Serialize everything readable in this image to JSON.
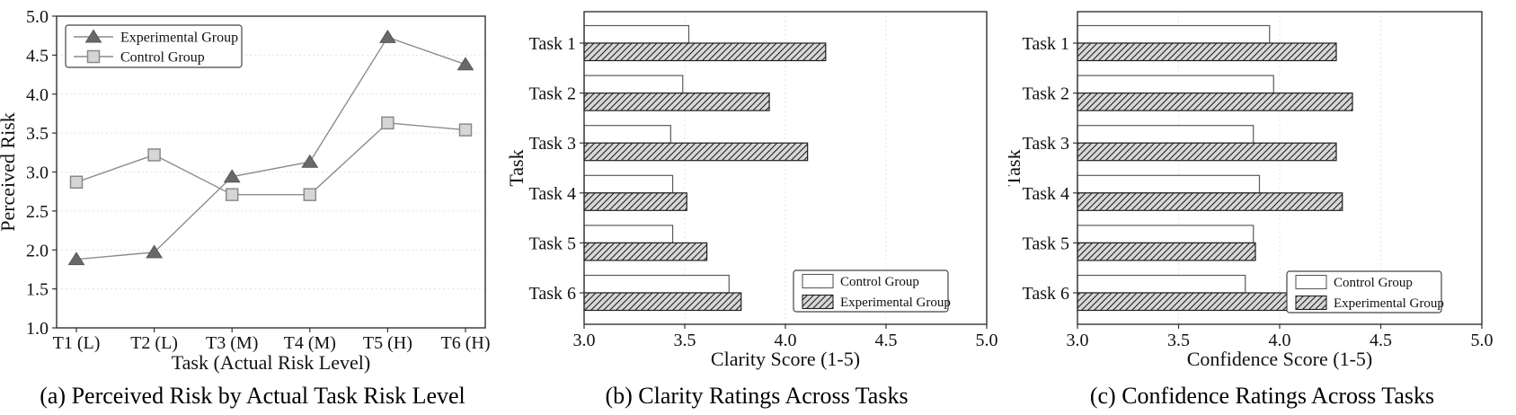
{
  "figure": {
    "background": "#ffffff",
    "panel_count": 3
  },
  "chart_data": [
    {
      "type": "line",
      "caption": "(a) Perceived Risk by Actual Task Risk Level",
      "xlabel": "Task (Actual Risk Level)",
      "ylabel": "Perceived Risk",
      "categories": [
        "T1 (L)",
        "T2 (L)",
        "T3 (M)",
        "T4 (M)",
        "T5 (H)",
        "T6 (H)"
      ],
      "series": [
        {
          "name": "Experimental Group",
          "marker": "triangle",
          "values": [
            1.88,
            1.97,
            2.94,
            3.13,
            4.73,
            4.38
          ]
        },
        {
          "name": "Control Group",
          "marker": "square",
          "values": [
            2.87,
            3.22,
            2.71,
            2.71,
            3.63,
            3.54
          ]
        }
      ],
      "ylim": [
        1.0,
        5.0
      ],
      "yticks": [
        1.0,
        1.5,
        2.0,
        2.5,
        3.0,
        3.5,
        4.0,
        4.5,
        5.0
      ],
      "grid": "horizontal-dashed",
      "legend_position": "upper-left",
      "colors": {
        "line": "#8c8c8c",
        "triangle_fill": "#696969",
        "triangle_edge": "#565656",
        "square_fill": "#d6d6d6",
        "square_edge": "#8a8a8a",
        "grid": "#e4e4e4",
        "frame": "#333333",
        "text": "#111111"
      }
    },
    {
      "type": "bar",
      "orientation": "horizontal",
      "caption": "(b) Clarity Ratings Across Tasks",
      "xlabel": "Clarity Score (1-5)",
      "ylabel": "Task",
      "categories": [
        "Task 1",
        "Task 2",
        "Task 3",
        "Task 4",
        "Task 5",
        "Task 6"
      ],
      "series": [
        {
          "name": "Control Group",
          "style": "plain",
          "values": [
            3.52,
            3.49,
            3.43,
            3.44,
            3.44,
            3.72
          ]
        },
        {
          "name": "Experimental Group",
          "style": "hatched",
          "values": [
            4.2,
            3.92,
            4.11,
            3.51,
            3.61,
            3.78
          ]
        }
      ],
      "xlim": [
        3.0,
        5.0
      ],
      "xticks": [
        3.0,
        3.5,
        4.0,
        4.5,
        5.0
      ],
      "grid": "vertical-dashed",
      "legend_position": "lower-right",
      "colors": {
        "control_fill": "#ffffff",
        "control_edge": "#5a5a5a",
        "experimental_fill": "#d8d8d8",
        "experimental_edge": "#1f1f1f",
        "hatch": "#1f1f1f",
        "grid": "#e4e4e4",
        "frame": "#333333",
        "text": "#111111"
      }
    },
    {
      "type": "bar",
      "orientation": "horizontal",
      "caption": "(c) Confidence Ratings Across Tasks",
      "xlabel": "Confidence Score (1-5)",
      "ylabel": "Task",
      "categories": [
        "Task 1",
        "Task 2",
        "Task 3",
        "Task 4",
        "Task 5",
        "Task 6"
      ],
      "series": [
        {
          "name": "Control Group",
          "style": "plain",
          "values": [
            3.95,
            3.97,
            3.87,
            3.9,
            3.87,
            3.83
          ]
        },
        {
          "name": "Experimental Group",
          "style": "hatched",
          "values": [
            4.28,
            4.36,
            4.28,
            4.31,
            3.88,
            4.06
          ]
        }
      ],
      "xlim": [
        3.0,
        5.0
      ],
      "xticks": [
        3.0,
        3.5,
        4.0,
        4.5,
        5.0
      ],
      "grid": "vertical-dashed",
      "legend_position": "lower-right",
      "colors": {
        "control_fill": "#ffffff",
        "control_edge": "#5a5a5a",
        "experimental_fill": "#d8d8d8",
        "experimental_edge": "#1f1f1f",
        "hatch": "#1f1f1f",
        "grid": "#e4e4e4",
        "frame": "#333333",
        "text": "#111111"
      }
    }
  ]
}
